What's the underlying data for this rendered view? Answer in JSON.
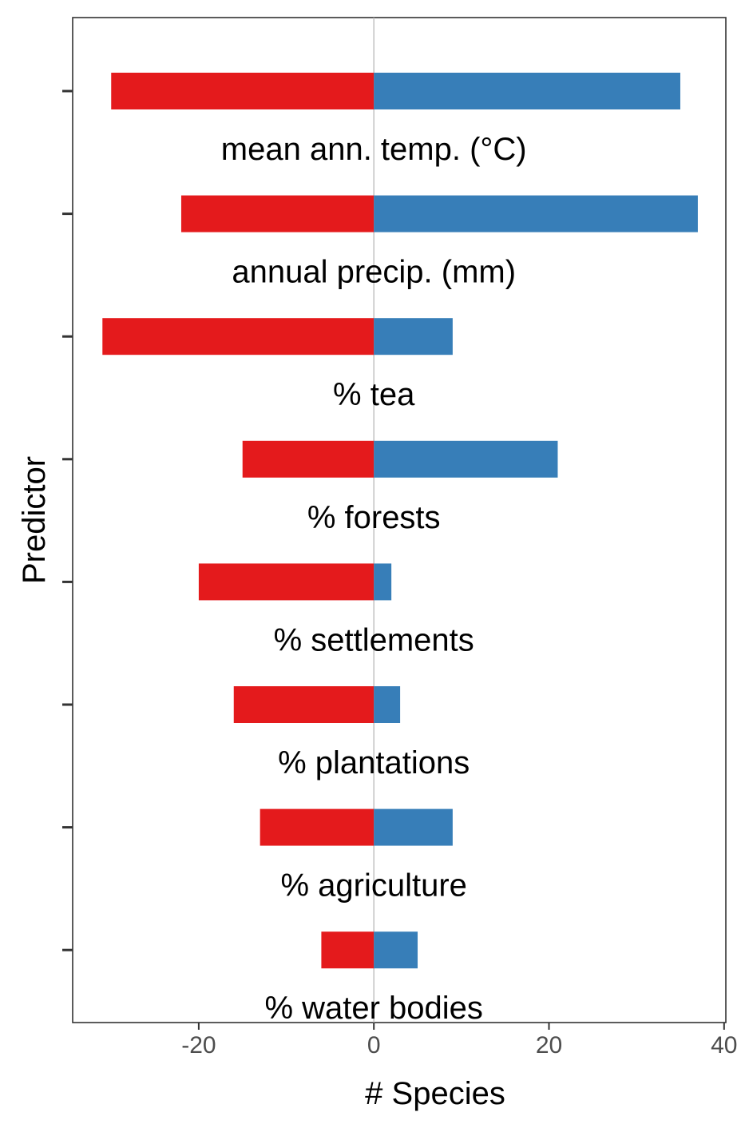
{
  "chart_data": {
    "type": "bar",
    "orientation": "horizontal",
    "xlabel": "# Species",
    "ylabel": "Predictor",
    "xlim": [
      -34.4,
      40.2
    ],
    "xticks": [
      -20,
      0,
      20,
      40
    ],
    "xtick_labels": [
      "-20",
      "0",
      "20",
      "40"
    ],
    "grid": false,
    "legend": "none",
    "categories": [
      "mean ann. temp. (°C)",
      "annual precip. (mm)",
      "% tea",
      "% forests",
      "% settlements",
      "% plantations",
      "% agriculture",
      "% water bodies"
    ],
    "series": [
      {
        "color": "#E41A1C",
        "values": [
          -30,
          -22,
          -31,
          -15,
          -20,
          -16,
          -13,
          -6
        ]
      },
      {
        "color": "#377EB8",
        "values": [
          35,
          37,
          9,
          21,
          2,
          3,
          9,
          5
        ]
      }
    ]
  }
}
